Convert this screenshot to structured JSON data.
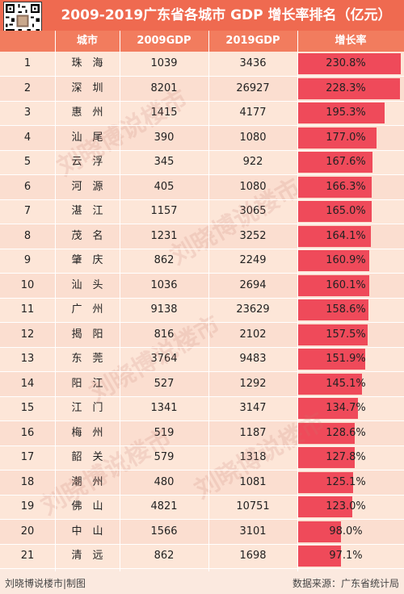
{
  "title": "2009-2019广东省各城市 GDP 增长率排名（亿元）",
  "headers": [
    "",
    "城市",
    "2009GDP",
    "2019GDP",
    "增长率"
  ],
  "watermark": "刘晓博说楼市",
  "footer": {
    "left": "刘晓博说楼市|制图",
    "right": "数据来源：广东省统计局"
  },
  "colors": {
    "title_bg": "#ef6a50",
    "header_bg": "#f27c5e",
    "bar": "#ef4a5a"
  },
  "chart_data": {
    "type": "table",
    "title": "2009-2019广东省各城市 GDP 增长率排名（亿元）",
    "columns": [
      "",
      "城市",
      "2009GDP",
      "2019GDP",
      "增长率"
    ],
    "rows": [
      {
        "rank": "1",
        "city": "珠　海",
        "gdp2009": "1039",
        "gdp2019": "3436",
        "growth": 230.8,
        "growth_label": "230.8%"
      },
      {
        "rank": "2",
        "city": "深　圳",
        "gdp2009": "8201",
        "gdp2019": "26927",
        "growth": 228.3,
        "growth_label": "228.3%"
      },
      {
        "rank": "3",
        "city": "惠　州",
        "gdp2009": "1415",
        "gdp2019": "4177",
        "growth": 195.3,
        "growth_label": "195.3%"
      },
      {
        "rank": "4",
        "city": "汕　尾",
        "gdp2009": "390",
        "gdp2019": "1080",
        "growth": 177.0,
        "growth_label": "177.0%"
      },
      {
        "rank": "5",
        "city": "云　浮",
        "gdp2009": "345",
        "gdp2019": "922",
        "growth": 167.6,
        "growth_label": "167.6%"
      },
      {
        "rank": "6",
        "city": "河　源",
        "gdp2009": "405",
        "gdp2019": "1080",
        "growth": 166.3,
        "growth_label": "166.3%"
      },
      {
        "rank": "7",
        "city": "湛　江",
        "gdp2009": "1157",
        "gdp2019": "3065",
        "growth": 165.0,
        "growth_label": "165.0%"
      },
      {
        "rank": "8",
        "city": "茂　名",
        "gdp2009": "1231",
        "gdp2019": "3252",
        "growth": 164.1,
        "growth_label": "164.1%"
      },
      {
        "rank": "9",
        "city": "肇　庆",
        "gdp2009": "862",
        "gdp2019": "2249",
        "growth": 160.9,
        "growth_label": "160.9%"
      },
      {
        "rank": "10",
        "city": "汕　头",
        "gdp2009": "1036",
        "gdp2019": "2694",
        "growth": 160.1,
        "growth_label": "160.1%"
      },
      {
        "rank": "11",
        "city": "广　州",
        "gdp2009": "9138",
        "gdp2019": "23629",
        "growth": 158.6,
        "growth_label": "158.6%"
      },
      {
        "rank": "12",
        "city": "揭　阳",
        "gdp2009": "816",
        "gdp2019": "2102",
        "growth": 157.5,
        "growth_label": "157.5%"
      },
      {
        "rank": "13",
        "city": "东　莞",
        "gdp2009": "3764",
        "gdp2019": "9483",
        "growth": 151.9,
        "growth_label": "151.9%"
      },
      {
        "rank": "14",
        "city": "阳　江",
        "gdp2009": "527",
        "gdp2019": "1292",
        "growth": 145.1,
        "growth_label": "145.1%"
      },
      {
        "rank": "15",
        "city": "江　门",
        "gdp2009": "1341",
        "gdp2019": "3147",
        "growth": 134.7,
        "growth_label": "134.7%"
      },
      {
        "rank": "16",
        "city": "梅　州",
        "gdp2009": "519",
        "gdp2019": "1187",
        "growth": 128.6,
        "growth_label": "128.6%"
      },
      {
        "rank": "17",
        "city": "韶　关",
        "gdp2009": "579",
        "gdp2019": "1318",
        "growth": 127.8,
        "growth_label": "127.8%"
      },
      {
        "rank": "18",
        "city": "潮　州",
        "gdp2009": "480",
        "gdp2019": "1081",
        "growth": 125.1,
        "growth_label": "125.1%"
      },
      {
        "rank": "19",
        "city": "佛　山",
        "gdp2009": "4821",
        "gdp2019": "10751",
        "growth": 123.0,
        "growth_label": "123.0%"
      },
      {
        "rank": "20",
        "city": "中　山",
        "gdp2009": "1566",
        "gdp2019": "3101",
        "growth": 98.0,
        "growth_label": "98.0%"
      },
      {
        "rank": "21",
        "city": "清　远",
        "gdp2009": "862",
        "gdp2019": "1698",
        "growth": 97.1,
        "growth_label": "97.1%"
      }
    ],
    "growth_max": 230.8
  }
}
